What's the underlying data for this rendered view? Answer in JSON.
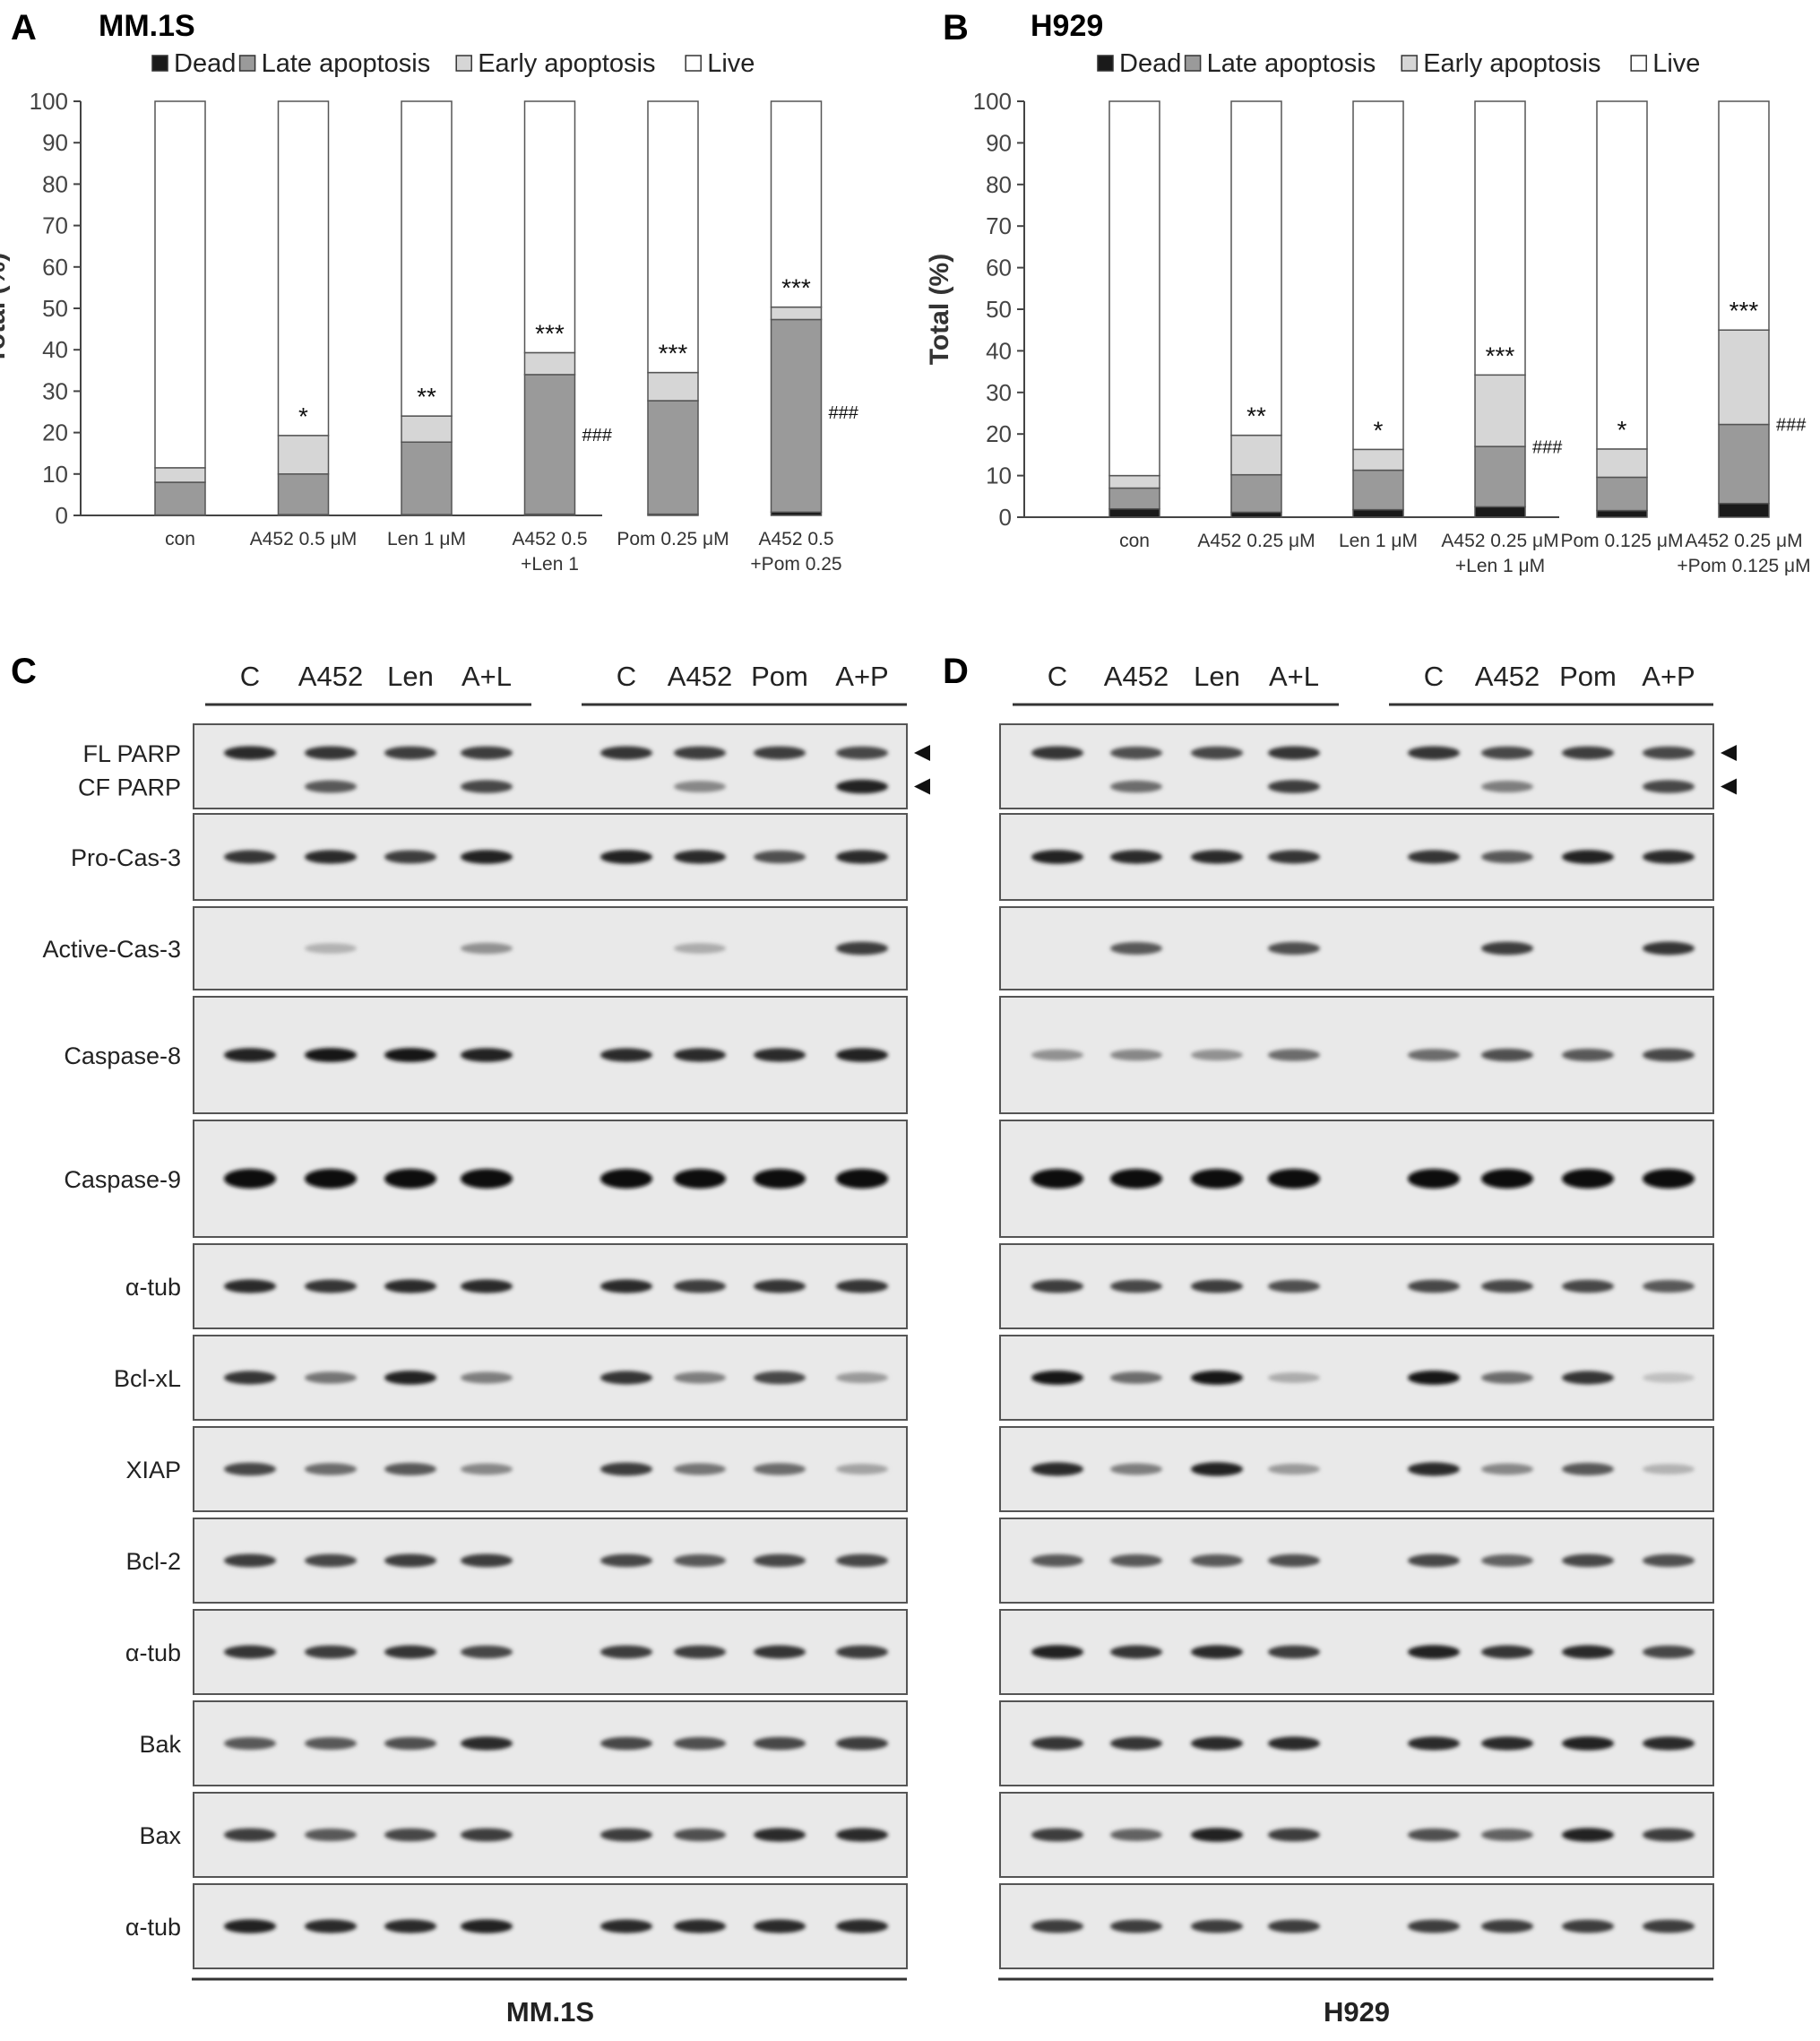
{
  "panels": {
    "A": {
      "letter": "A",
      "title": "MM.1S"
    },
    "B": {
      "letter": "B",
      "title": "H929"
    },
    "C": {
      "letter": "C"
    },
    "D": {
      "letter": "D"
    }
  },
  "chart_data": [
    {
      "type": "bar",
      "stacked": true,
      "panel": "A",
      "title": "MM.1S",
      "ylabel": "Total (%)",
      "ylim": [
        0,
        100
      ],
      "yticks": [
        0,
        10,
        20,
        30,
        40,
        50,
        60,
        70,
        80,
        90,
        100
      ],
      "legend_position": "top",
      "categories": [
        [
          "con"
        ],
        [
          "A452 0.5 μM"
        ],
        [
          "Len 1 μM"
        ],
        [
          "A452 0.5",
          "+Len 1"
        ],
        [
          "Pom 0.25 μM"
        ],
        [
          "A452 0.5",
          "+Pom 0.25"
        ]
      ],
      "series": [
        {
          "name": "Dead",
          "color": "#1a1a1a",
          "values": [
            0.1,
            0.2,
            0.2,
            0.3,
            0.3,
            0.8
          ]
        },
        {
          "name": "Late apoptosis",
          "color": "#9a9a9a",
          "values": [
            7.9,
            9.8,
            17.5,
            33.7,
            27.4,
            46.5
          ]
        },
        {
          "name": "Early apoptosis",
          "color": "#d6d6d6",
          "values": [
            3.5,
            9.3,
            6.3,
            5.3,
            6.8,
            3.0
          ]
        },
        {
          "name": "Live",
          "color": "#ffffff",
          "values": [
            88.5,
            80.7,
            76.0,
            60.7,
            65.5,
            49.7
          ]
        }
      ],
      "annotations": [
        "",
        "*",
        "**",
        "***",
        "***",
        "***"
      ],
      "side_marks": [
        "",
        "",
        "",
        "###",
        "",
        "###"
      ]
    },
    {
      "type": "bar",
      "stacked": true,
      "panel": "B",
      "title": "H929",
      "ylabel": "Total (%)",
      "ylim": [
        0,
        100
      ],
      "yticks": [
        0,
        10,
        20,
        30,
        40,
        50,
        60,
        70,
        80,
        90,
        100
      ],
      "legend_position": "top",
      "categories": [
        [
          "con"
        ],
        [
          "A452 0.25 μM"
        ],
        [
          "Len 1 μM"
        ],
        [
          "A452 0.25 μM",
          "+Len 1 μM"
        ],
        [
          "Pom 0.125 μM"
        ],
        [
          "A452 0.25 μM",
          "+Pom 0.125 μM"
        ]
      ],
      "series": [
        {
          "name": "Dead",
          "color": "#1a1a1a",
          "values": [
            2.0,
            1.2,
            1.8,
            2.5,
            1.6,
            3.3
          ]
        },
        {
          "name": "Late apoptosis",
          "color": "#9a9a9a",
          "values": [
            5.0,
            9.0,
            9.5,
            14.5,
            8.0,
            19.0
          ]
        },
        {
          "name": "Early apoptosis",
          "color": "#d6d6d6",
          "values": [
            3.0,
            9.5,
            5.0,
            17.2,
            6.8,
            22.7
          ]
        },
        {
          "name": "Live",
          "color": "#ffffff",
          "values": [
            90.0,
            80.3,
            83.7,
            65.8,
            83.6,
            55.0
          ]
        }
      ],
      "annotations": [
        "",
        "**",
        "*",
        "***",
        "*",
        "***"
      ],
      "side_marks": [
        "",
        "",
        "",
        "###",
        "",
        "###"
      ]
    }
  ],
  "western": {
    "panelC": {
      "cell_line": "MM.1S",
      "lane_groups": [
        [
          "C",
          "A452",
          "Len",
          "A+L"
        ],
        [
          "C",
          "A452",
          "Pom",
          "A+P"
        ]
      ],
      "blots": [
        {
          "labels": [
            "FL PARP",
            "CF PARP"
          ],
          "arrows": true,
          "rows": [
            [
              0.85,
              0.8,
              0.75,
              0.75,
              0.8,
              0.75,
              0.75,
              0.7
            ],
            [
              0,
              0.6,
              0,
              0.7,
              0,
              0.35,
              0,
              0.9
            ]
          ]
        },
        {
          "labels": [
            "Pro-Cas-3"
          ],
          "rows": [
            [
              0.8,
              0.85,
              0.75,
              0.9,
              0.9,
              0.85,
              0.65,
              0.85
            ]
          ]
        },
        {
          "labels": [
            "Active-Cas-3"
          ],
          "rows": [
            [
              0,
              0.12,
              0,
              0.3,
              0,
              0.15,
              0,
              0.75
            ]
          ]
        },
        {
          "labels": [
            "Caspase-8"
          ],
          "rows": [
            [
              0.9,
              0.95,
              0.95,
              0.9,
              0.85,
              0.85,
              0.85,
              0.9
            ]
          ]
        },
        {
          "labels": [
            "Caspase-9"
          ],
          "rows": [
            [
              1,
              1,
              1,
              1,
              1,
              1,
              1,
              1
            ]
          ]
        },
        {
          "labels": [
            "α-tub"
          ],
          "rows": [
            [
              0.85,
              0.8,
              0.85,
              0.85,
              0.85,
              0.75,
              0.8,
              0.8
            ]
          ]
        },
        {
          "labels": [
            "Bcl-xL"
          ],
          "rows": [
            [
              0.8,
              0.45,
              0.9,
              0.4,
              0.8,
              0.4,
              0.7,
              0.25
            ]
          ]
        },
        {
          "labels": [
            "XIAP"
          ],
          "rows": [
            [
              0.7,
              0.5,
              0.6,
              0.35,
              0.75,
              0.45,
              0.5,
              0.2
            ]
          ]
        },
        {
          "labels": [
            "Bcl-2"
          ],
          "rows": [
            [
              0.75,
              0.7,
              0.75,
              0.75,
              0.7,
              0.6,
              0.7,
              0.7
            ]
          ]
        },
        {
          "labels": [
            "α-tub"
          ],
          "rows": [
            [
              0.8,
              0.75,
              0.8,
              0.7,
              0.75,
              0.75,
              0.8,
              0.75
            ]
          ]
        },
        {
          "labels": [
            "Bak"
          ],
          "rows": [
            [
              0.6,
              0.6,
              0.65,
              0.85,
              0.7,
              0.65,
              0.7,
              0.75
            ]
          ]
        },
        {
          "labels": [
            "Bax"
          ],
          "rows": [
            [
              0.75,
              0.6,
              0.7,
              0.75,
              0.75,
              0.65,
              0.85,
              0.85
            ]
          ]
        },
        {
          "labels": [
            "α-tub"
          ],
          "rows": [
            [
              0.9,
              0.85,
              0.85,
              0.9,
              0.85,
              0.85,
              0.85,
              0.85
            ]
          ]
        }
      ]
    },
    "panelD": {
      "cell_line": "H929",
      "lane_groups": [
        [
          "C",
          "A452",
          "Len",
          "A+L"
        ],
        [
          "C",
          "A452",
          "Pom",
          "A+P"
        ]
      ],
      "blots": [
        {
          "labels": [
            "",
            ""
          ],
          "arrows": true,
          "rows": [
            [
              0.8,
              0.65,
              0.7,
              0.8,
              0.8,
              0.7,
              0.75,
              0.7
            ],
            [
              0,
              0.5,
              0,
              0.75,
              0,
              0.4,
              0,
              0.7
            ]
          ]
        },
        {
          "labels": [
            ""
          ],
          "rows": [
            [
              0.9,
              0.85,
              0.85,
              0.8,
              0.8,
              0.6,
              0.9,
              0.85
            ]
          ]
        },
        {
          "labels": [
            ""
          ],
          "rows": [
            [
              0,
              0.6,
              0,
              0.65,
              0,
              0.75,
              0,
              0.8
            ]
          ]
        },
        {
          "labels": [
            ""
          ],
          "rows": [
            [
              0.3,
              0.35,
              0.3,
              0.5,
              0.5,
              0.65,
              0.6,
              0.7
            ]
          ]
        },
        {
          "labels": [
            ""
          ],
          "rows": [
            [
              1,
              1,
              1,
              1,
              1,
              1,
              1,
              1
            ]
          ]
        },
        {
          "labels": [
            ""
          ],
          "rows": [
            [
              0.75,
              0.7,
              0.75,
              0.65,
              0.7,
              0.7,
              0.7,
              0.6
            ]
          ]
        },
        {
          "labels": [
            ""
          ],
          "rows": [
            [
              0.95,
              0.5,
              0.95,
              0.15,
              0.95,
              0.5,
              0.8,
              0.05
            ]
          ]
        },
        {
          "labels": [
            ""
          ],
          "rows": [
            [
              0.85,
              0.4,
              0.9,
              0.25,
              0.85,
              0.35,
              0.6,
              0.12
            ]
          ]
        },
        {
          "labels": [
            ""
          ],
          "rows": [
            [
              0.6,
              0.6,
              0.6,
              0.65,
              0.7,
              0.55,
              0.7,
              0.65
            ]
          ]
        },
        {
          "labels": [
            ""
          ],
          "rows": [
            [
              0.9,
              0.8,
              0.85,
              0.75,
              0.9,
              0.8,
              0.85,
              0.7
            ]
          ]
        },
        {
          "labels": [
            ""
          ],
          "rows": [
            [
              0.8,
              0.8,
              0.85,
              0.85,
              0.85,
              0.85,
              0.9,
              0.85
            ]
          ]
        },
        {
          "labels": [
            ""
          ],
          "rows": [
            [
              0.75,
              0.55,
              0.9,
              0.75,
              0.65,
              0.55,
              0.9,
              0.75
            ]
          ]
        },
        {
          "labels": [
            ""
          ],
          "rows": [
            [
              0.75,
              0.75,
              0.75,
              0.75,
              0.75,
              0.75,
              0.75,
              0.75
            ]
          ]
        }
      ]
    }
  }
}
